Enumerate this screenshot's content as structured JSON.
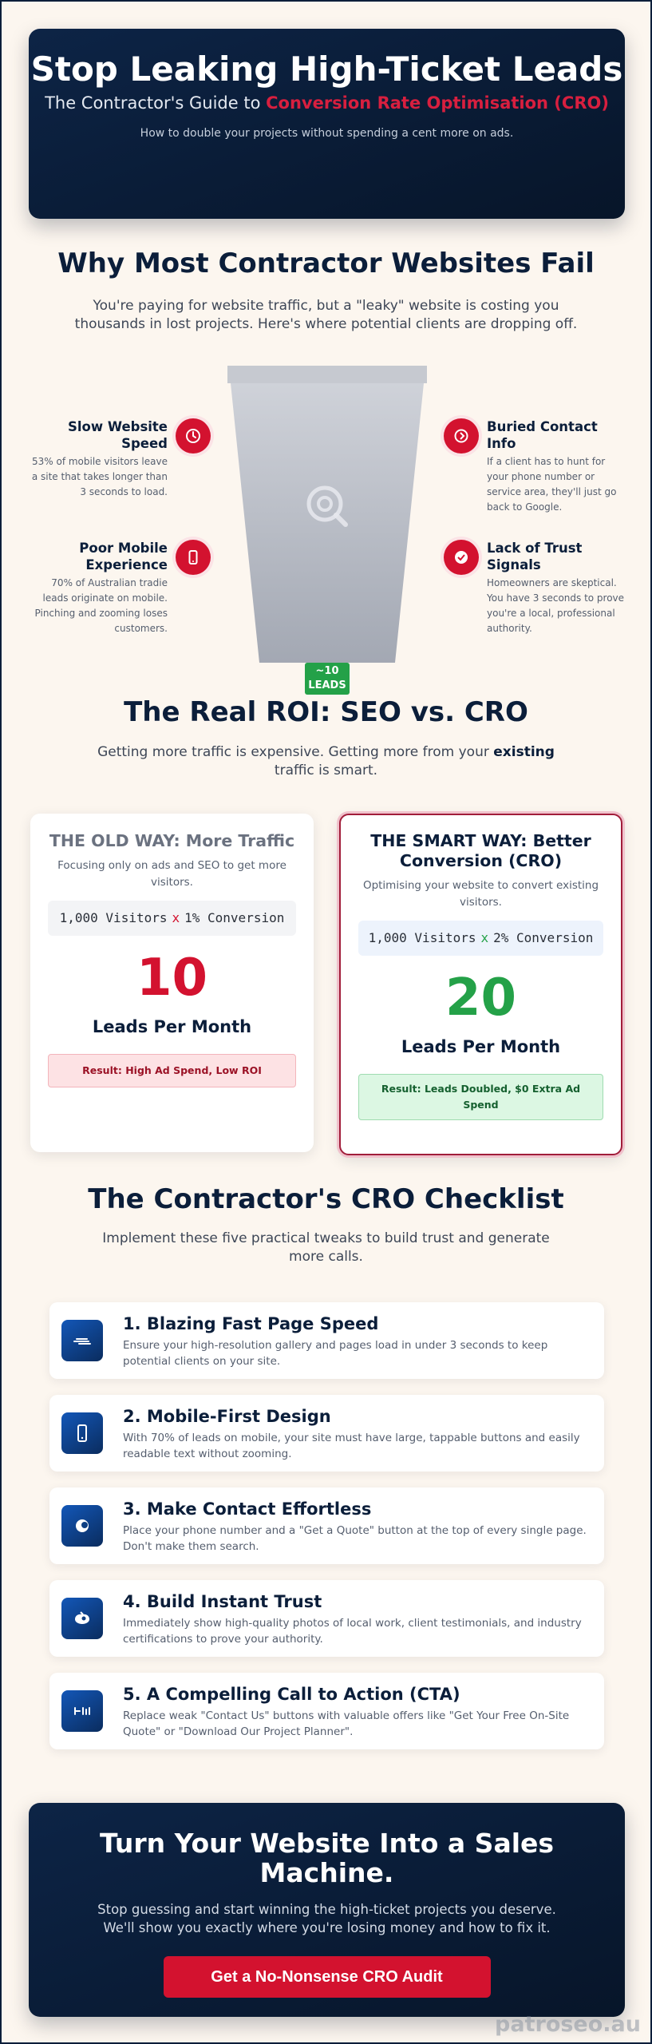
{
  "hero": {
    "title": "Stop Leaking High-Ticket Leads",
    "subtitle_prefix": "The Contractor's Guide to ",
    "subtitle_accent": "Conversion Rate Optimisation (CRO)",
    "tagline": "How to double your projects without spending a cent more on ads."
  },
  "why": {
    "title": "Why Most Contractor Websites Fail",
    "intro": "You're paying for website traffic, but a \"leaky\" website is costing you thousands in lost projects. Here's where potential clients are dropping off.",
    "funnel_badge": "~10 LEADS",
    "items": [
      {
        "icon": "clock-icon",
        "title": "Slow Website Speed",
        "text": "53% of mobile visitors leave a site that takes longer than 3 seconds to load."
      },
      {
        "icon": "phone-icon",
        "title": "Buried Contact Info",
        "text": "If a client has to hunt for your phone number or service area, they'll just go back to Google."
      },
      {
        "icon": "mobile-icon",
        "title": "Poor Mobile Experience",
        "text": "70% of Australian tradie leads originate on mobile. Pinching and zooming loses customers."
      },
      {
        "icon": "trust-icon",
        "title": "Lack of Trust Signals",
        "text": "Homeowners are skeptical. You have 3 seconds to prove you're a local, professional authority."
      }
    ]
  },
  "roi": {
    "title": "The Real ROI: SEO vs. CRO",
    "intro_prefix": "Getting more traffic is expensive. Getting more from your ",
    "intro_bold": "existing",
    "intro_suffix": " traffic is smart.",
    "old": {
      "title": "THE OLD WAY: More Traffic",
      "desc": "Focusing only on ads and SEO to get more visitors.",
      "visitors": "1,000 Visitors",
      "times": "x",
      "conversion": "1% Conversion",
      "leads": "10",
      "leads_label": "Leads Per Month",
      "result": "Result: High Ad Spend, Low ROI"
    },
    "smart": {
      "title": "THE SMART WAY: Better Conversion (CRO)",
      "desc": "Optimising your website to convert existing visitors.",
      "visitors": "1,000 Visitors",
      "times": "x",
      "conversion": "2% Conversion",
      "leads": "20",
      "leads_label": "Leads Per Month",
      "result": "Result: Leads Doubled, $0 Extra Ad Spend"
    }
  },
  "checklist": {
    "title": "The Contractor's CRO Checklist",
    "intro": "Implement these five practical tweaks to build trust and generate more calls.",
    "items": [
      {
        "icon": "speed-icon",
        "title": "1. Blazing Fast Page Speed",
        "text": "Ensure your high-resolution gallery and pages load in under 3 seconds to keep potential clients on your site."
      },
      {
        "icon": "mobile-icon",
        "title": "2. Mobile-First Design",
        "text": "With 70% of leads on mobile, your site must have large, tappable buttons and easily readable text without zooming."
      },
      {
        "icon": "contact-icon",
        "title": "3. Make Contact Effortless",
        "text": "Place your phone number and a \"Get a Quote\" button at the top of every single page. Don't make them search."
      },
      {
        "icon": "trust-icon",
        "title": "4. Build Instant Trust",
        "text": "Immediately show high-quality photos of local work, client testimonials, and industry certifications to prove your authority."
      },
      {
        "icon": "cta-icon",
        "title": "5. A Compelling Call to Action (CTA)",
        "text": "Replace weak \"Contact Us\" buttons with valuable offers like \"Get Your Free On-Site Quote\" or \"Download Our Project Planner\"."
      }
    ]
  },
  "cta": {
    "title": "Turn Your Website Into a Sales Machine.",
    "text": "Stop guessing and start winning the high-ticket projects you deserve. We'll show you exactly where you're losing money and how to fix it.",
    "button": "Get a No-Nonsense CRO Audit"
  },
  "watermark": "patroseo.au",
  "colors": {
    "navy": "#0b1e3a",
    "accent_red": "#d3122f",
    "green": "#24a148",
    "background": "#fcf6ef"
  }
}
